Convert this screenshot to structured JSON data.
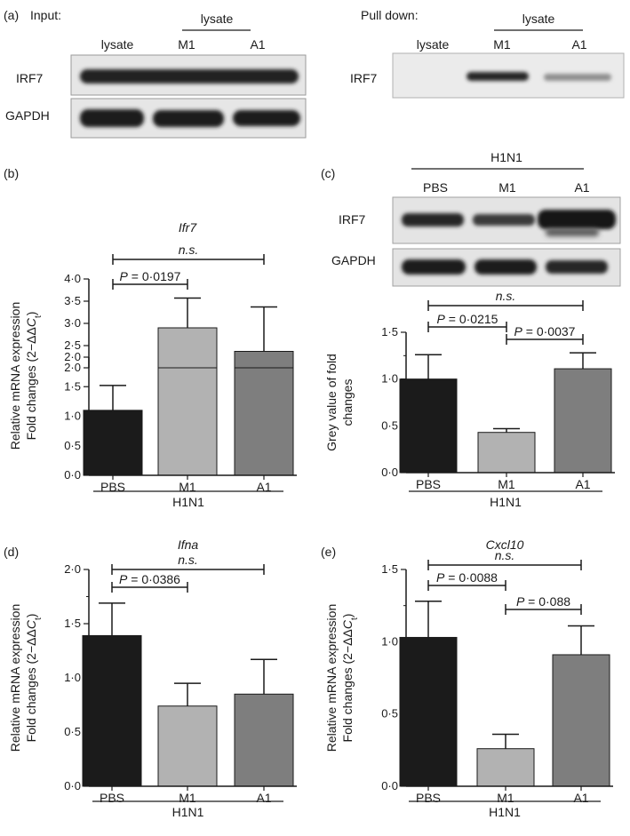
{
  "blots": {
    "a_input": {
      "header": "Input:",
      "group_label": "lysate",
      "lanes": [
        "lysate",
        "M1",
        "A1"
      ],
      "rows": [
        "IRF7",
        "GAPDH"
      ]
    },
    "a_pulldown": {
      "header": "Pull down:",
      "group_label": "lysate",
      "lanes": [
        "lysate",
        "M1",
        "A1"
      ],
      "rows": [
        "IRF7"
      ]
    },
    "c": {
      "group_label": "H1N1",
      "lanes": [
        "PBS",
        "M1",
        "A1"
      ],
      "rows": [
        "IRF7",
        "GAPDH"
      ]
    }
  },
  "chart_data": [
    {
      "panel": "(b)",
      "type": "bar",
      "title": "Ifr7",
      "ylabel_line1": "Relative mRNA expression",
      "ylabel_line2": "Fold changes (2−ΔΔCt)",
      "categories": [
        "PBS",
        "M1",
        "A1"
      ],
      "values": [
        1.1,
        2.9,
        2.37
      ],
      "errors": [
        0.42,
        0.67,
        1.0
      ],
      "xgroup": "H1N1",
      "broken_axis": true,
      "yticks_lower": [
        "0·0",
        "0·5",
        "1·0",
        "1·5",
        "2·0"
      ],
      "yticks_upper": [
        "2·0",
        "2·5",
        "3·0",
        "3·5",
        "4·0"
      ],
      "ylim_lower": [
        0,
        2
      ],
      "ylim_upper": [
        2,
        4
      ],
      "annotations": [
        {
          "text": "n.s.",
          "from": 0,
          "to": 2
        },
        {
          "text": "P = 0·0197",
          "from": 0,
          "to": 1
        }
      ]
    },
    {
      "panel": "(c)",
      "type": "bar",
      "ylabel_line1": "Grey value of fold",
      "ylabel_line2": "changes",
      "categories": [
        "PBS",
        "M1",
        "A1"
      ],
      "values": [
        1.0,
        0.43,
        1.11
      ],
      "errors": [
        0.26,
        0.04,
        0.17
      ],
      "xgroup": "H1N1",
      "ylim": [
        0,
        1.5
      ],
      "yticks": [
        "0·0",
        "0·5",
        "1·0",
        "1·5"
      ],
      "annotations": [
        {
          "text": "n.s.",
          "from": 0,
          "to": 2
        },
        {
          "text": "P = 0·0215",
          "from": 0,
          "to": 1
        },
        {
          "text": "P = 0·0037",
          "from": 1,
          "to": 2
        }
      ]
    },
    {
      "panel": "(d)",
      "type": "bar",
      "title": "Ifna",
      "ylabel_line1": "Relative mRNA expression",
      "ylabel_line2": "Fold changes (2−ΔΔCt)",
      "categories": [
        "PBS",
        "M1",
        "A1"
      ],
      "values": [
        1.39,
        0.74,
        0.85
      ],
      "errors": [
        0.3,
        0.21,
        0.32
      ],
      "xgroup": "H1N1",
      "ylim": [
        0,
        2.0
      ],
      "yticks": [
        "0·0",
        "0·5",
        "1·0",
        "1·5",
        "2·0"
      ],
      "annotations": [
        {
          "text": "n.s.",
          "from": 0,
          "to": 2
        },
        {
          "text": "P = 0·0386",
          "from": 0,
          "to": 1
        }
      ]
    },
    {
      "panel": "(e)",
      "type": "bar",
      "title": "Cxcl10",
      "ylabel_line1": "Relative mRNA expression",
      "ylabel_line2": "Fold changes (2−ΔΔCt)",
      "categories": [
        "PBS",
        "M1",
        "A1"
      ],
      "values": [
        1.03,
        0.26,
        0.91
      ],
      "errors": [
        0.25,
        0.1,
        0.2
      ],
      "xgroup": "H1N1",
      "ylim": [
        0,
        1.5
      ],
      "yticks": [
        "0·0",
        "0·5",
        "1·0",
        "1·5"
      ],
      "annotations": [
        {
          "text": "n.s.",
          "from": 0,
          "to": 2
        },
        {
          "text": "P = 0·0088",
          "from": 0,
          "to": 1
        },
        {
          "text": "P = 0·088",
          "from": 1,
          "to": 2
        }
      ]
    }
  ],
  "colors": {
    "bars": [
      "#1b1b1b",
      "#b2b2b2",
      "#7e7e7e"
    ],
    "blot_bg": "#e6e6e6",
    "band": "#1f1f1f"
  }
}
